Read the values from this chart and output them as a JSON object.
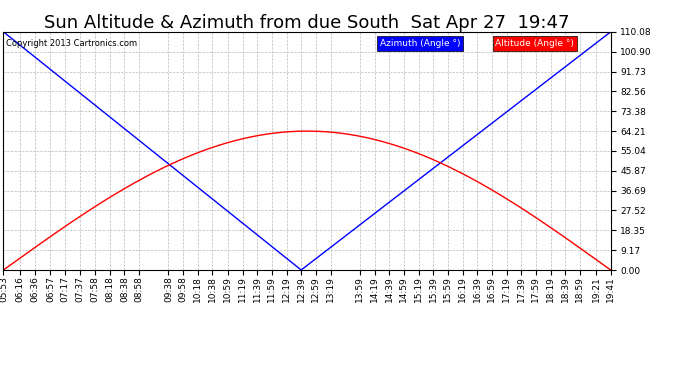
{
  "title": "Sun Altitude & Azimuth from due South  Sat Apr 27  19:47",
  "copyright": "Copyright 2013 Cartronics.com",
  "legend_azimuth": "Azimuth (Angle °)",
  "legend_altitude": "Altitude (Angle °)",
  "yticks": [
    0.0,
    9.17,
    18.35,
    27.52,
    36.69,
    45.87,
    55.04,
    64.21,
    73.38,
    82.56,
    91.73,
    100.9,
    110.08
  ],
  "ymax": 110.08,
  "ymin": 0.0,
  "xtick_labels": [
    "05:53",
    "06:16",
    "06:36",
    "06:57",
    "07:17",
    "07:37",
    "07:58",
    "08:18",
    "08:38",
    "08:58",
    "09:38",
    "09:58",
    "10:18",
    "10:38",
    "10:59",
    "11:19",
    "11:39",
    "11:59",
    "12:19",
    "12:39",
    "12:59",
    "13:19",
    "13:59",
    "14:19",
    "14:39",
    "14:59",
    "15:19",
    "15:39",
    "15:59",
    "16:19",
    "16:39",
    "16:59",
    "17:19",
    "17:39",
    "17:59",
    "18:19",
    "18:39",
    "18:59",
    "19:21",
    "19:41"
  ],
  "azimuth_color": "#0000ff",
  "altitude_color": "#ff0000",
  "grid_color": "#bbbbbb",
  "background_color": "#ffffff",
  "title_fontsize": 13,
  "tick_fontsize": 6.5
}
